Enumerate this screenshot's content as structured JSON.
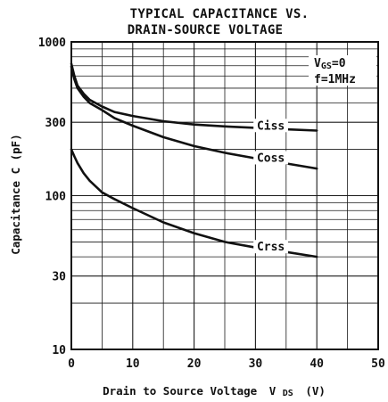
{
  "chart_data": {
    "type": "line",
    "title_lines": [
      "TYPICAL CAPACITANCE VS.",
      "DRAIN-SOURCE VOLTAGE"
    ],
    "xlabel_text": "Drain to Source Voltage",
    "xlabel_symbol": "V",
    "xlabel_subscript": "DS",
    "xlabel_unit": "(V)",
    "ylabel": "Capacitance C (pF)",
    "xlim": [
      0,
      50
    ],
    "ylim": [
      10,
      1000
    ],
    "yscale": "log",
    "grid": true,
    "x_ticks": [
      0,
      10,
      20,
      30,
      40,
      50
    ],
    "x_tick_labels": [
      "0",
      "10",
      "20",
      "30",
      "40",
      "50"
    ],
    "y_ticks": [
      10,
      30,
      100,
      300,
      1000
    ],
    "y_tick_labels": [
      "10",
      "30",
      "100",
      "300",
      "1000"
    ],
    "annotations": [
      {
        "symbol": "V",
        "subscript": "GS",
        "text": "=0"
      },
      {
        "text": "f=1MHz"
      }
    ],
    "series": [
      {
        "name": "Ciss",
        "x": [
          0,
          0.5,
          1,
          2,
          3,
          5,
          7,
          10,
          15,
          20,
          25,
          30,
          35,
          40
        ],
        "values": [
          720,
          600,
          520,
          460,
          420,
          380,
          350,
          330,
          305,
          290,
          282,
          276,
          270,
          265
        ]
      },
      {
        "name": "Coss",
        "x": [
          0,
          0.5,
          1,
          2,
          3,
          5,
          7,
          10,
          15,
          20,
          25,
          30,
          35,
          40
        ],
        "values": [
          690,
          570,
          500,
          440,
          400,
          360,
          320,
          285,
          240,
          210,
          190,
          175,
          162,
          150
        ]
      },
      {
        "name": "Crss",
        "x": [
          0,
          0.5,
          1,
          2,
          3,
          5,
          7,
          10,
          15,
          20,
          25,
          30,
          35,
          40
        ],
        "values": [
          200,
          180,
          163,
          140,
          125,
          105,
          95,
          83,
          67,
          57,
          50,
          46,
          43,
          40
        ]
      }
    ]
  }
}
